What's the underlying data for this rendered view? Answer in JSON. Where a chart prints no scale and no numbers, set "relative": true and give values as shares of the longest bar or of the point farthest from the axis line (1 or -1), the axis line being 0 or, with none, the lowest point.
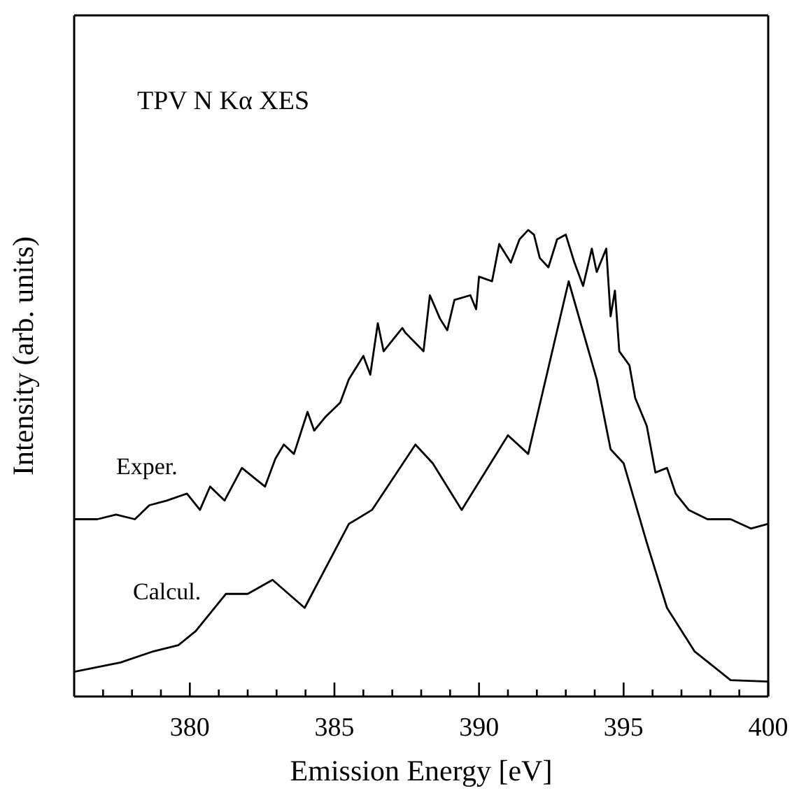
{
  "chart_data": {
    "type": "line",
    "title": "TPV N Kα XES",
    "xlabel": "Emission Energy [eV]",
    "ylabel": "Intensity (arb. units)",
    "relative": true,
    "xlim": [
      376,
      400
    ],
    "xticks": [
      {
        "value": 377,
        "label": null
      },
      {
        "value": 378,
        "label": null
      },
      {
        "value": 379,
        "label": null
      },
      380,
      {
        "value": 381,
        "label": null
      },
      {
        "value": 382,
        "label": null
      },
      {
        "value": 383,
        "label": null
      },
      {
        "value": 384,
        "label": null
      },
      385,
      {
        "value": 386,
        "label": null
      },
      {
        "value": 387,
        "label": null
      },
      {
        "value": 388,
        "label": null
      },
      {
        "value": 389,
        "label": null
      },
      390,
      {
        "value": 391,
        "label": null
      },
      {
        "value": 392,
        "label": null
      },
      {
        "value": 393,
        "label": null
      },
      {
        "value": 394,
        "label": null
      },
      395,
      {
        "value": 396,
        "label": null
      },
      {
        "value": 397,
        "label": null
      },
      {
        "value": 398,
        "label": null
      },
      {
        "value": 399,
        "label": null
      },
      400
    ],
    "series": [
      {
        "name": "Exper.",
        "color": "#000000",
        "x": [
          376,
          376.8,
          377.45,
          378.1,
          378.6,
          379.2,
          379.9,
          380.35,
          380.7,
          381.2,
          381.8,
          382.6,
          382.96,
          383.25,
          383.6,
          384.07,
          384.3,
          384.7,
          385.2,
          385.5,
          386,
          386.24,
          386.5,
          386.7,
          387.35,
          387.45,
          388.08,
          388.3,
          388.65,
          388.9,
          389.15,
          389.7,
          389.9,
          390,
          390.45,
          390.7,
          391.1,
          391.4,
          391.7,
          391.9,
          392.1,
          392.4,
          392.7,
          393,
          393.3,
          393.6,
          393.9,
          394.07,
          394.4,
          394.55,
          394.7,
          394.85,
          395.2,
          395.4,
          395.8,
          396.1,
          396.5,
          396.8,
          397.25,
          397.9,
          398.7,
          399.4,
          400
        ],
        "values": [
          0.38,
          0.38,
          0.39,
          0.38,
          0.41,
          0.42,
          0.435,
          0.4,
          0.45,
          0.42,
          0.49,
          0.45,
          0.51,
          0.54,
          0.52,
          0.61,
          0.57,
          0.6,
          0.63,
          0.68,
          0.73,
          0.69,
          0.8,
          0.74,
          0.79,
          0.78,
          0.74,
          0.86,
          0.81,
          0.785,
          0.85,
          0.86,
          0.83,
          0.9,
          0.89,
          0.97,
          0.93,
          0.98,
          1,
          0.99,
          0.94,
          0.92,
          0.98,
          0.99,
          0.93,
          0.88,
          0.96,
          0.91,
          0.96,
          0.815,
          0.87,
          0.74,
          0.71,
          0.64,
          0.58,
          0.48,
          0.49,
          0.435,
          0.4,
          0.38,
          0.38,
          0.36,
          0.37
        ]
      },
      {
        "name": "Calcul.",
        "color": "#000000",
        "x": [
          376,
          377.6,
          378.75,
          379.6,
          380.2,
          381.25,
          382,
          382.86,
          383.97,
          385.5,
          386.3,
          387.8,
          388.4,
          389.4,
          391,
          391.7,
          393.1,
          394.07,
          394.55,
          395,
          395.8,
          396.5,
          397.45,
          398.7,
          400
        ],
        "values": [
          0.053,
          0.073,
          0.097,
          0.11,
          0.14,
          0.22,
          0.22,
          0.25,
          0.19,
          0.37,
          0.4,
          0.54,
          0.5,
          0.4,
          0.56,
          0.52,
          0.89,
          0.68,
          0.53,
          0.5,
          0.33,
          0.19,
          0.097,
          0.035,
          0.032
        ]
      }
    ]
  }
}
